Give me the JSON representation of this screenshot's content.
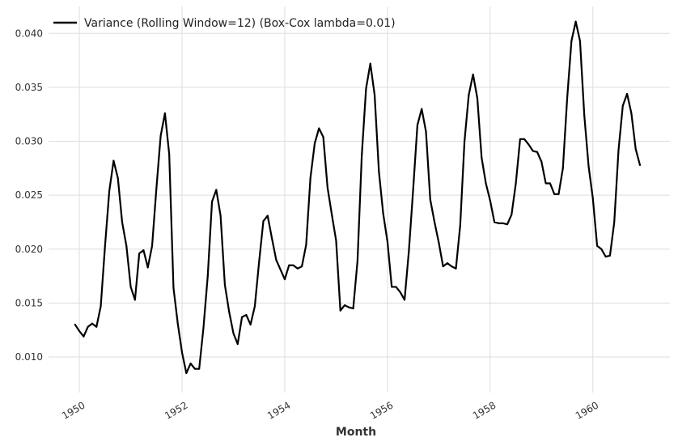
{
  "chart_data": {
    "type": "line",
    "title": "",
    "xlabel": "Month",
    "ylabel": "",
    "xlim": [
      1949.4,
      1961.5
    ],
    "ylim": [
      0.0067,
      0.0425
    ],
    "grid": true,
    "legend_position": "top-left",
    "x_ticks": [
      1950,
      1952,
      1954,
      1956,
      1958,
      1960
    ],
    "x_tick_labels": [
      "1950",
      "1952",
      "1954",
      "1956",
      "1958",
      "1960"
    ],
    "y_ticks": [
      0.01,
      0.015,
      0.02,
      0.025,
      0.03,
      0.035,
      0.04
    ],
    "y_tick_labels": [
      "0.010",
      "0.015",
      "0.020",
      "0.025",
      "0.030",
      "0.035",
      "0.040"
    ],
    "series": [
      {
        "name": "Variance (Rolling Window=12) (Box-Cox lambda=0.01)",
        "color": "#000000",
        "start_year": 1949.9167,
        "step": 0.08333,
        "values": [
          0.013,
          0.0124,
          0.0119,
          0.0128,
          0.0131,
          0.0128,
          0.0147,
          0.0203,
          0.0254,
          0.0282,
          0.0266,
          0.0225,
          0.0203,
          0.0165,
          0.0153,
          0.0196,
          0.0199,
          0.0183,
          0.0203,
          0.0256,
          0.0305,
          0.0326,
          0.0288,
          0.0164,
          0.0131,
          0.0104,
          0.0085,
          0.0094,
          0.0089,
          0.0089,
          0.0127,
          0.0175,
          0.0244,
          0.0255,
          0.0231,
          0.0167,
          0.0142,
          0.0122,
          0.0112,
          0.0137,
          0.0139,
          0.013,
          0.0147,
          0.0188,
          0.0226,
          0.0231,
          0.021,
          0.019,
          0.0181,
          0.0172,
          0.0185,
          0.0185,
          0.0182,
          0.0184,
          0.0204,
          0.0266,
          0.0298,
          0.0312,
          0.0304,
          0.0257,
          0.0232,
          0.0208,
          0.0143,
          0.0148,
          0.0146,
          0.0145,
          0.0189,
          0.0287,
          0.0349,
          0.0372,
          0.0343,
          0.0272,
          0.0233,
          0.0207,
          0.0165,
          0.0165,
          0.016,
          0.0153,
          0.0198,
          0.0255,
          0.0315,
          0.033,
          0.0309,
          0.0246,
          0.0225,
          0.0206,
          0.0184,
          0.0187,
          0.0184,
          0.0182,
          0.0222,
          0.03,
          0.0343,
          0.0362,
          0.034,
          0.0285,
          0.0261,
          0.0245,
          0.0225,
          0.0224,
          0.0224,
          0.0223,
          0.0232,
          0.0261,
          0.0302,
          0.0302,
          0.0297,
          0.0291,
          0.029,
          0.0281,
          0.0261,
          0.0261,
          0.0251,
          0.0251,
          0.0275,
          0.034,
          0.0393,
          0.0411,
          0.0393,
          0.0324,
          0.0277,
          0.0247,
          0.0203,
          0.02,
          0.0193,
          0.0194,
          0.0225,
          0.0292,
          0.0333,
          0.0344,
          0.0326,
          0.0293,
          0.0278
        ]
      }
    ]
  }
}
